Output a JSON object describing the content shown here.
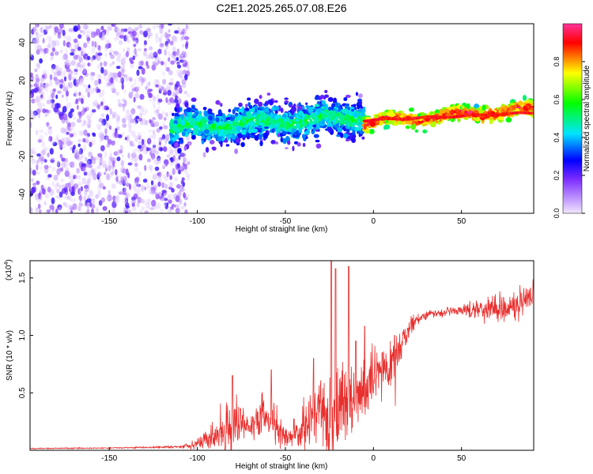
{
  "title": "C2E1.2025.265.07.08.E26",
  "chart_data": [
    {
      "type": "heatmap",
      "title": "C2E1.2025.265.07.08.E26",
      "xlabel": "Height of straight line (km)",
      "ylabel": "Frequency (Hz)",
      "xlim": [
        -195,
        91
      ],
      "ylim": [
        -50,
        50
      ],
      "x_ticks": [
        -150,
        -100,
        -50,
        0,
        50
      ],
      "y_ticks": [
        -40,
        -20,
        0,
        20,
        40
      ],
      "colorbar": {
        "label": "Normalized spectral amplitude",
        "range": [
          0,
          1
        ],
        "ticks": [
          "0.0",
          "0.2",
          "0.4",
          "0.6",
          "0.8"
        ],
        "colors": [
          "#f2e6ff",
          "#7b2cff",
          "#0000ff",
          "#00e5ff",
          "#00ff00",
          "#ffff00",
          "#ff0000"
        ]
      },
      "regions": [
        {
          "description": "Noise (scattered purple)",
          "x_range": [
            -195,
            -105
          ],
          "freq_range": [
            -50,
            50
          ],
          "amplitude": [
            0.02,
            0.25
          ]
        },
        {
          "description": "Noisy echo band",
          "x_range": [
            -115,
            -5
          ],
          "freq_center": [
            -5,
            1
          ],
          "freq_spread": [
            6,
            12
          ],
          "amplitude": [
            0.2,
            0.6
          ]
        },
        {
          "description": "Strong echo line",
          "x_range": [
            -5,
            91
          ],
          "freq_center": [
            -2,
            5
          ],
          "freq_spread": [
            2,
            4
          ],
          "amplitude": [
            0.6,
            1.0
          ]
        }
      ]
    },
    {
      "type": "line",
      "xlabel": "Height of straight line (km)",
      "ylabel": "SNR (10 * v/v)",
      "scale_label": "(x10",
      "scale_exponent": "4",
      "scale_suffix": ")",
      "xlim": [
        -195,
        91
      ],
      "ylim": [
        0,
        1.65
      ],
      "x_ticks": [
        -150,
        -100,
        -50,
        0,
        50
      ],
      "y_ticks": [
        "0.5",
        "1.0",
        "1.5"
      ],
      "color": "#e8302e",
      "series": [
        {
          "name": "SNR",
          "x": [
            -195,
            -150,
            -110,
            -100,
            -90,
            -80,
            -75,
            -70,
            -62,
            -57,
            -50,
            -42,
            -35,
            -30,
            -25,
            -20,
            -15,
            -10,
            -5,
            0,
            5,
            10,
            15,
            20,
            25,
            30,
            40,
            50,
            60,
            70,
            80,
            91
          ],
          "base": [
            0.015,
            0.02,
            0.03,
            0.06,
            0.12,
            0.25,
            0.28,
            0.18,
            0.3,
            0.25,
            0.1,
            0.15,
            0.28,
            0.35,
            0.3,
            0.4,
            0.45,
            0.42,
            0.5,
            0.6,
            0.7,
            0.72,
            0.9,
            1.05,
            1.15,
            1.18,
            1.2,
            1.22,
            1.23,
            1.24,
            1.25,
            1.3
          ],
          "noise": [
            0.005,
            0.005,
            0.01,
            0.05,
            0.12,
            0.3,
            0.15,
            0.1,
            0.25,
            0.2,
            0.1,
            0.15,
            0.25,
            0.3,
            0.6,
            0.5,
            0.35,
            0.25,
            0.3,
            0.25,
            0.2,
            0.2,
            0.15,
            0.08,
            0.05,
            0.04,
            0.03,
            0.04,
            0.1,
            0.12,
            0.14,
            0.15
          ]
        }
      ],
      "peaks": [
        {
          "x": -24,
          "y": 1.65
        },
        {
          "x": -21.5,
          "y": 1.58
        },
        {
          "x": -14,
          "y": 1.6
        },
        {
          "x": -34,
          "y": 0.8
        },
        {
          "x": -10,
          "y": 0.95
        },
        {
          "x": -5,
          "y": 1.08
        },
        {
          "x": 5,
          "y": 0.85
        },
        {
          "x": 12,
          "y": 1.0
        },
        {
          "x": -80,
          "y": 0.65
        },
        {
          "x": -58,
          "y": 0.7
        }
      ]
    }
  ]
}
